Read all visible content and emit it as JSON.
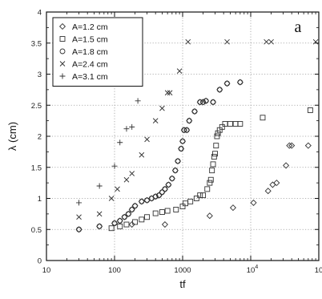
{
  "chart_data": {
    "type": "scatter",
    "panel_label": "a",
    "xlabel": "tf",
    "ylabel": "λ (cm)",
    "x_scale": "log",
    "xlim": [
      10,
      100000
    ],
    "ylim": [
      0,
      4
    ],
    "x_ticks": [
      {
        "value": 10,
        "base": "10",
        "exp": ""
      },
      {
        "value": 100,
        "base": "100",
        "exp": ""
      },
      {
        "value": 1000,
        "base": "1000",
        "exp": ""
      },
      {
        "value": 10000,
        "base": "10",
        "exp": "4"
      },
      {
        "value": 100000,
        "base": "10",
        "exp": "5"
      }
    ],
    "y_ticks": [
      "0",
      "0.5",
      "1",
      "1.5",
      "2",
      "2.5",
      "3",
      "3.5",
      "4"
    ],
    "grid": true,
    "legend_position": "top-left",
    "series": [
      {
        "name": "A=1.2 cm",
        "marker": "diamond",
        "points": [
          [
            30,
            0.5
          ],
          [
            60,
            0.55
          ],
          [
            100,
            0.6
          ],
          [
            120,
            0.64
          ],
          [
            140,
            0.7
          ],
          [
            160,
            0.75
          ],
          [
            180,
            0.82
          ],
          [
            200,
            0.88
          ],
          [
            250,
            0.95
          ],
          [
            300,
            0.97
          ],
          [
            350,
            1.0
          ],
          [
            400,
            1.03
          ],
          [
            450,
            1.05
          ],
          [
            500,
            1.1
          ],
          [
            550,
            1.15
          ],
          [
            620,
            1.22
          ],
          [
            700,
            1.32
          ],
          [
            780,
            1.45
          ],
          [
            850,
            1.6
          ],
          [
            950,
            1.8
          ],
          [
            1000,
            1.92
          ],
          [
            1050,
            2.1
          ],
          [
            1150,
            2.1
          ],
          [
            1250,
            2.25
          ],
          [
            1500,
            2.4
          ],
          [
            1800,
            2.55
          ],
          [
            2000,
            2.55
          ],
          [
            2200,
            2.57
          ],
          [
            2800,
            2.55
          ],
          [
            3500,
            2.75
          ],
          [
            4500,
            2.85
          ],
          [
            7000,
            2.87
          ],
          [
            180,
            0.58
          ],
          [
            550,
            0.58
          ],
          [
            2500,
            0.72
          ],
          [
            5500,
            0.85
          ],
          [
            11000,
            0.93
          ],
          [
            18000,
            1.12
          ],
          [
            21000,
            1.22
          ],
          [
            24000,
            1.25
          ],
          [
            33000,
            1.53
          ],
          [
            37000,
            1.85
          ],
          [
            40000,
            1.85
          ],
          [
            70000,
            1.85
          ]
        ]
      },
      {
        "name": "A=1.5 cm",
        "marker": "square",
        "points": [
          [
            90,
            0.52
          ],
          [
            120,
            0.55
          ],
          [
            150,
            0.58
          ],
          [
            200,
            0.62
          ],
          [
            250,
            0.66
          ],
          [
            300,
            0.7
          ],
          [
            400,
            0.76
          ],
          [
            500,
            0.78
          ],
          [
            600,
            0.8
          ],
          [
            800,
            0.82
          ],
          [
            1000,
            0.87
          ],
          [
            1100,
            0.92
          ],
          [
            1300,
            0.95
          ],
          [
            1600,
            1.0
          ],
          [
            1800,
            1.05
          ],
          [
            2000,
            1.05
          ],
          [
            2300,
            1.15
          ],
          [
            2500,
            1.25
          ],
          [
            2600,
            1.3
          ],
          [
            2700,
            1.45
          ],
          [
            2800,
            1.55
          ],
          [
            2900,
            1.67
          ],
          [
            3000,
            1.72
          ],
          [
            3100,
            1.85
          ],
          [
            3200,
            2.0
          ],
          [
            3300,
            2.05
          ],
          [
            3500,
            2.1
          ],
          [
            3800,
            2.15
          ],
          [
            4200,
            2.2
          ],
          [
            5000,
            2.2
          ],
          [
            6000,
            2.2
          ],
          [
            7000,
            2.2
          ],
          [
            15000,
            2.3
          ],
          [
            75000,
            2.42
          ]
        ]
      },
      {
        "name": "A=1.8 cm",
        "marker": "circle",
        "points": [
          [
            30,
            0.5
          ],
          [
            60,
            0.55
          ],
          [
            100,
            0.6
          ],
          [
            120,
            0.64
          ],
          [
            140,
            0.7
          ],
          [
            160,
            0.75
          ],
          [
            180,
            0.82
          ],
          [
            200,
            0.88
          ],
          [
            250,
            0.95
          ],
          [
            300,
            0.97
          ],
          [
            350,
            1.0
          ],
          [
            400,
            1.03
          ],
          [
            450,
            1.05
          ],
          [
            500,
            1.1
          ],
          [
            550,
            1.15
          ],
          [
            620,
            1.22
          ],
          [
            700,
            1.32
          ],
          [
            780,
            1.45
          ],
          [
            850,
            1.6
          ],
          [
            950,
            1.8
          ],
          [
            1000,
            1.92
          ],
          [
            1050,
            2.1
          ],
          [
            1150,
            2.1
          ],
          [
            1250,
            2.25
          ],
          [
            1500,
            2.4
          ],
          [
            1800,
            2.55
          ],
          [
            2000,
            2.55
          ],
          [
            2200,
            2.57
          ],
          [
            2800,
            2.55
          ],
          [
            3500,
            2.75
          ],
          [
            4500,
            2.85
          ],
          [
            7000,
            2.87
          ]
        ]
      },
      {
        "name": "A=2.4 cm",
        "marker": "x",
        "points": [
          [
            30,
            0.7
          ],
          [
            60,
            0.75
          ],
          [
            90,
            1.0
          ],
          [
            110,
            1.15
          ],
          [
            150,
            1.3
          ],
          [
            180,
            1.4
          ],
          [
            250,
            1.7
          ],
          [
            300,
            1.95
          ],
          [
            400,
            2.25
          ],
          [
            500,
            2.45
          ],
          [
            600,
            2.7
          ],
          [
            650,
            2.7
          ],
          [
            900,
            3.05
          ],
          [
            1200,
            3.52
          ],
          [
            4500,
            3.52
          ],
          [
            17000,
            3.52
          ],
          [
            20000,
            3.52
          ],
          [
            90000,
            3.52
          ]
        ]
      },
      {
        "name": "A=3.1 cm",
        "marker": "plus",
        "points": [
          [
            30,
            0.93
          ],
          [
            60,
            1.2
          ],
          [
            100,
            1.52
          ],
          [
            120,
            1.9
          ],
          [
            150,
            2.12
          ],
          [
            180,
            2.15
          ],
          [
            220,
            2.57
          ]
        ]
      }
    ]
  }
}
